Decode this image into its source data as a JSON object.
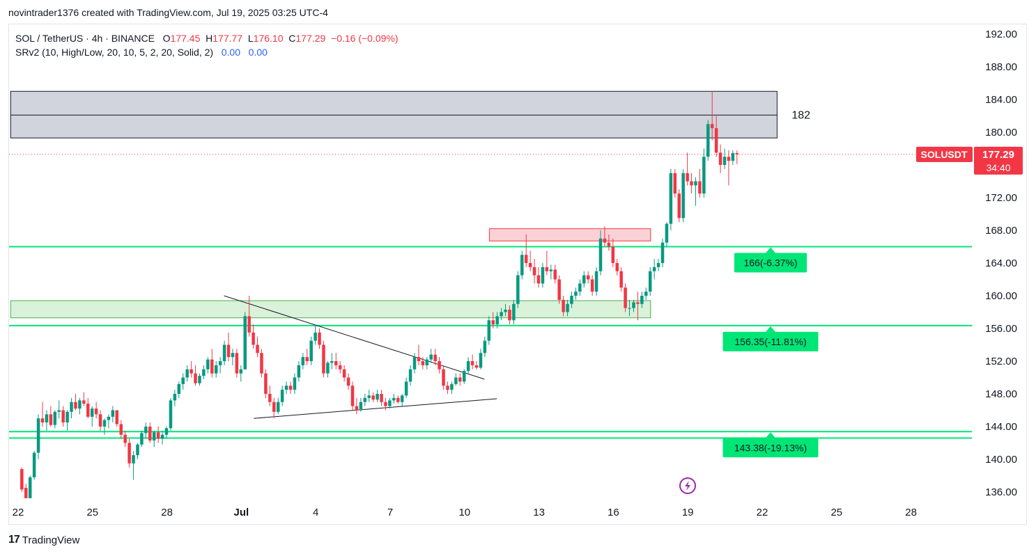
{
  "attribution": "novintrader1376 created with TradingView.com, Jul 19, 2025 03:25 UTC-4",
  "legend": {
    "symbol": "SOL / TetherUS · 4h · BINANCE",
    "o_label": "O",
    "o_val": "177.45",
    "h_label": "H",
    "h_val": "177.77",
    "l_label": "L",
    "l_val": "176.10",
    "c_label": "C",
    "c_val": "177.29",
    "change": "−0.16 (−0.09%)",
    "indicator": "SRv2 (10, High/Low, 20, 10, 5, 2, 20, Solid, 2)",
    "ind_val1": "0.00",
    "ind_val2": "0.00"
  },
  "footer": {
    "logo_mark": "17",
    "logo_text": "TradingView"
  },
  "colors": {
    "up": "#089981",
    "down": "#f23645",
    "level": "#00e676",
    "zone_gray": "#d1d4dc",
    "zone_red": "#f9cdd2",
    "zone_green": "#d6efd6"
  },
  "chart_data": {
    "type": "candlestick",
    "symbol": "SOLUSDT",
    "timeframe": "4h",
    "ylim": [
      135,
      193
    ],
    "y_ticks": [
      "136.00",
      "140.00",
      "144.00",
      "148.00",
      "152.00",
      "156.00",
      "160.00",
      "164.00",
      "168.00",
      "172.00",
      "176.00",
      "180.00",
      "184.00",
      "188.00",
      "192.00"
    ],
    "x_ticks": [
      {
        "label": "22",
        "day": 0
      },
      {
        "label": "25",
        "day": 3
      },
      {
        "label": "28",
        "day": 6
      },
      {
        "label": "Jul",
        "day": 9
      },
      {
        "label": "4",
        "day": 12
      },
      {
        "label": "7",
        "day": 15
      },
      {
        "label": "10",
        "day": 18
      },
      {
        "label": "13",
        "day": 21
      },
      {
        "label": "16",
        "day": 24
      },
      {
        "label": "19",
        "day": 27
      },
      {
        "label": "22",
        "day": 30
      },
      {
        "label": "25",
        "day": 33
      },
      {
        "label": "28",
        "day": 36
      }
    ],
    "last_price": {
      "symbol_label": "SOLUSDT",
      "price": "177.29",
      "countdown": "34:40",
      "value": 177.29
    },
    "zones": [
      {
        "kind": "gray",
        "day_from": -0.3,
        "day_to": 30.6,
        "top": 185.0,
        "bottom": 179.3,
        "mid": 182.1,
        "label": "182"
      },
      {
        "kind": "red",
        "day_from": 19.0,
        "day_to": 25.5,
        "top": 168.2,
        "bottom": 166.7
      },
      {
        "kind": "green",
        "day_from": -0.3,
        "day_to": 25.5,
        "top": 159.4,
        "bottom": 157.3
      }
    ],
    "levels": [
      {
        "value": 166.0,
        "label": "166(-6.37%)"
      },
      {
        "value": 156.35,
        "label": "156.35(-11.81%)"
      },
      {
        "value": 143.38,
        "label": "143.38(-19.13%)",
        "second_line": 142.6
      }
    ],
    "trendlines": [
      {
        "d1": 8.3,
        "p1": 160.0,
        "d2": 18.8,
        "p2": 149.8
      },
      {
        "d1": 9.5,
        "p1": 145.0,
        "d2": 19.3,
        "p2": 147.4
      }
    ],
    "candles": [
      [
        138.8,
        139.0,
        136.0,
        136.3
      ],
      [
        136.5,
        137.0,
        135.0,
        135.2
      ],
      [
        135.2,
        138.0,
        135.0,
        137.8
      ],
      [
        137.8,
        141.0,
        137.5,
        140.8
      ],
      [
        140.8,
        145.5,
        140.0,
        145.0
      ],
      [
        145.0,
        147.0,
        144.0,
        144.5
      ],
      [
        144.5,
        146.0,
        143.5,
        145.5
      ],
      [
        145.5,
        146.5,
        144.0,
        144.2
      ],
      [
        144.2,
        146.0,
        143.8,
        145.8
      ],
      [
        145.8,
        147.2,
        145.0,
        146.0
      ],
      [
        146.0,
        146.5,
        144.0,
        144.5
      ],
      [
        144.5,
        146.0,
        143.5,
        145.8
      ],
      [
        145.8,
        147.5,
        145.0,
        147.0
      ],
      [
        147.0,
        148.0,
        146.0,
        146.2
      ],
      [
        146.2,
        147.5,
        145.5,
        147.2
      ],
      [
        147.2,
        148.2,
        146.5,
        146.8
      ],
      [
        146.8,
        147.5,
        145.0,
        145.2
      ],
      [
        145.2,
        146.5,
        144.0,
        146.2
      ],
      [
        146.2,
        147.0,
        145.0,
        145.5
      ],
      [
        145.5,
        146.0,
        143.5,
        144.0
      ],
      [
        144.0,
        145.0,
        143.0,
        144.8
      ],
      [
        144.8,
        145.5,
        143.8,
        145.2
      ],
      [
        145.2,
        146.5,
        144.5,
        146.0
      ],
      [
        146.0,
        146.0,
        144.0,
        144.3
      ],
      [
        144.3,
        144.8,
        142.5,
        143.0
      ],
      [
        143.0,
        143.5,
        141.5,
        142.0
      ],
      [
        142.0,
        142.5,
        139.0,
        139.5
      ],
      [
        139.5,
        141.0,
        137.5,
        140.5
      ],
      [
        140.5,
        142.0,
        140.0,
        141.8
      ],
      [
        141.8,
        143.5,
        141.5,
        143.2
      ],
      [
        143.2,
        144.5,
        142.5,
        144.0
      ],
      [
        144.0,
        144.5,
        142.0,
        142.3
      ],
      [
        142.3,
        143.5,
        141.5,
        143.3
      ],
      [
        143.3,
        144.0,
        142.0,
        142.5
      ],
      [
        142.5,
        143.5,
        141.8,
        143.0
      ],
      [
        143.0,
        144.0,
        142.5,
        143.8
      ],
      [
        143.8,
        147.5,
        143.5,
        147.2
      ],
      [
        147.2,
        148.5,
        146.5,
        148.0
      ],
      [
        148.0,
        149.5,
        147.5,
        149.2
      ],
      [
        149.2,
        150.5,
        148.5,
        150.0
      ],
      [
        150.0,
        151.5,
        149.5,
        151.0
      ],
      [
        151.0,
        152.0,
        150.0,
        150.5
      ],
      [
        150.5,
        151.5,
        149.0,
        149.3
      ],
      [
        149.3,
        150.5,
        149.0,
        150.2
      ],
      [
        150.2,
        151.5,
        149.8,
        151.0
      ],
      [
        151.0,
        152.5,
        150.5,
        152.2
      ],
      [
        152.2,
        153.5,
        150.0,
        150.5
      ],
      [
        150.5,
        152.0,
        150.0,
        151.5
      ],
      [
        151.5,
        152.5,
        150.5,
        152.0
      ],
      [
        152.0,
        154.5,
        151.5,
        154.0
      ],
      [
        154.0,
        155.5,
        152.0,
        152.5
      ],
      [
        152.5,
        153.5,
        151.5,
        153.0
      ],
      [
        153.0,
        153.5,
        150.0,
        150.5
      ],
      [
        150.5,
        151.5,
        149.5,
        151.0
      ],
      [
        151.0,
        158.0,
        151.0,
        157.5
      ],
      [
        157.5,
        160.0,
        155.0,
        155.5
      ],
      [
        155.5,
        156.5,
        153.5,
        154.0
      ],
      [
        154.0,
        155.0,
        152.5,
        153.0
      ],
      [
        153.0,
        153.5,
        150.0,
        150.5
      ],
      [
        150.5,
        151.0,
        147.5,
        148.0
      ],
      [
        148.0,
        149.0,
        146.5,
        147.0
      ],
      [
        147.0,
        147.5,
        145.0,
        145.8
      ],
      [
        145.8,
        147.5,
        145.5,
        147.0
      ],
      [
        147.0,
        149.0,
        146.5,
        148.5
      ],
      [
        148.5,
        149.5,
        148.0,
        149.0
      ],
      [
        149.0,
        149.5,
        148.0,
        148.5
      ],
      [
        148.5,
        150.5,
        148.0,
        150.0
      ],
      [
        150.0,
        152.0,
        149.5,
        151.5
      ],
      [
        151.5,
        153.0,
        151.0,
        152.5
      ],
      [
        152.5,
        153.5,
        151.5,
        152.0
      ],
      [
        152.0,
        155.0,
        151.5,
        154.5
      ],
      [
        154.5,
        156.5,
        154.0,
        155.5
      ],
      [
        155.5,
        156.0,
        153.5,
        154.0
      ],
      [
        154.0,
        154.5,
        150.0,
        150.5
      ],
      [
        150.5,
        152.0,
        150.0,
        151.8
      ],
      [
        151.8,
        153.0,
        151.0,
        152.0
      ],
      [
        152.0,
        153.0,
        151.0,
        151.5
      ],
      [
        151.5,
        152.0,
        150.5,
        151.0
      ],
      [
        151.0,
        151.5,
        149.5,
        150.0
      ],
      [
        150.0,
        150.5,
        148.5,
        149.0
      ],
      [
        149.0,
        149.5,
        146.0,
        146.5
      ],
      [
        146.5,
        147.5,
        145.5,
        146.0
      ],
      [
        146.0,
        147.5,
        145.8,
        147.0
      ],
      [
        147.0,
        148.0,
        146.5,
        147.5
      ],
      [
        147.5,
        148.5,
        147.0,
        147.8
      ],
      [
        147.8,
        148.2,
        147.0,
        147.3
      ],
      [
        147.3,
        148.5,
        147.0,
        148.0
      ],
      [
        148.0,
        148.5,
        146.5,
        147.0
      ],
      [
        147.0,
        147.5,
        146.0,
        146.5
      ],
      [
        146.5,
        147.5,
        146.2,
        147.2
      ],
      [
        147.2,
        148.0,
        146.8,
        147.5
      ],
      [
        147.5,
        147.8,
        146.8,
        147.0
      ],
      [
        147.0,
        148.0,
        146.5,
        147.8
      ],
      [
        147.8,
        150.0,
        147.5,
        149.5
      ],
      [
        149.5,
        151.5,
        149.0,
        151.0
      ],
      [
        151.0,
        153.0,
        150.5,
        152.5
      ],
      [
        152.5,
        154.0,
        151.5,
        152.0
      ],
      [
        152.0,
        152.5,
        151.0,
        151.5
      ],
      [
        151.5,
        152.5,
        151.0,
        152.2
      ],
      [
        152.2,
        153.5,
        151.8,
        152.8
      ],
      [
        152.8,
        153.5,
        151.5,
        152.0
      ],
      [
        152.0,
        152.5,
        150.5,
        151.0
      ],
      [
        151.0,
        151.5,
        148.5,
        149.0
      ],
      [
        149.0,
        149.5,
        148.0,
        148.5
      ],
      [
        148.5,
        149.5,
        148.0,
        149.2
      ],
      [
        149.2,
        150.5,
        149.0,
        150.0
      ],
      [
        150.0,
        150.5,
        149.0,
        149.5
      ],
      [
        149.5,
        151.0,
        149.2,
        150.8
      ],
      [
        150.8,
        152.5,
        150.5,
        152.0
      ],
      [
        152.0,
        152.8,
        151.0,
        151.5
      ],
      [
        151.5,
        152.0,
        151.0,
        151.2
      ],
      [
        151.2,
        153.5,
        151.0,
        153.0
      ],
      [
        153.0,
        155.0,
        152.5,
        154.5
      ],
      [
        154.5,
        157.5,
        154.0,
        157.0
      ],
      [
        157.0,
        158.0,
        156.0,
        156.5
      ],
      [
        156.5,
        158.0,
        156.0,
        157.5
      ],
      [
        157.5,
        158.5,
        157.0,
        158.0
      ],
      [
        158.0,
        159.0,
        157.5,
        158.3
      ],
      [
        158.3,
        158.8,
        156.5,
        157.0
      ],
      [
        157.0,
        159.5,
        156.5,
        159.0
      ],
      [
        159.0,
        163.0,
        158.5,
        162.5
      ],
      [
        162.5,
        165.5,
        162.0,
        165.0
      ],
      [
        165.0,
        167.5,
        163.5,
        164.0
      ],
      [
        164.0,
        165.5,
        163.0,
        163.5
      ],
      [
        163.5,
        164.5,
        161.5,
        162.5
      ],
      [
        162.5,
        163.5,
        161.0,
        161.5
      ],
      [
        161.5,
        164.0,
        161.0,
        163.5
      ],
      [
        163.5,
        165.5,
        162.5,
        163.0
      ],
      [
        163.0,
        163.8,
        162.0,
        163.2
      ],
      [
        163.2,
        163.8,
        161.5,
        162.0
      ],
      [
        162.0,
        162.5,
        159.0,
        159.5
      ],
      [
        159.5,
        160.0,
        157.5,
        158.0
      ],
      [
        158.0,
        159.5,
        157.5,
        159.0
      ],
      [
        159.0,
        160.5,
        158.5,
        160.0
      ],
      [
        160.0,
        161.0,
        159.5,
        160.5
      ],
      [
        160.5,
        162.0,
        160.0,
        161.5
      ],
      [
        161.5,
        163.0,
        161.0,
        162.5
      ],
      [
        162.5,
        163.0,
        161.5,
        162.0
      ],
      [
        162.0,
        162.5,
        160.0,
        160.5
      ],
      [
        160.5,
        163.5,
        160.0,
        163.0
      ],
      [
        163.0,
        168.0,
        162.5,
        167.0
      ],
      [
        167.0,
        168.5,
        166.0,
        166.5
      ],
      [
        166.5,
        167.5,
        165.5,
        166.0
      ],
      [
        166.0,
        167.0,
        163.5,
        164.0
      ],
      [
        164.0,
        164.5,
        162.5,
        163.0
      ],
      [
        163.0,
        163.5,
        160.5,
        161.0
      ],
      [
        161.0,
        161.5,
        158.0,
        158.5
      ],
      [
        158.5,
        159.5,
        157.5,
        158.5
      ],
      [
        158.5,
        159.5,
        158.0,
        159.2
      ],
      [
        159.2,
        160.5,
        157.0,
        159.0
      ],
      [
        159.0,
        160.5,
        158.5,
        160.0
      ],
      [
        160.0,
        161.0,
        159.5,
        160.5
      ],
      [
        160.5,
        163.5,
        160.0,
        163.0
      ],
      [
        163.0,
        164.5,
        162.0,
        163.5
      ],
      [
        163.5,
        164.5,
        163.0,
        164.0
      ],
      [
        164.0,
        167.0,
        163.5,
        166.5
      ],
      [
        166.5,
        169.0,
        166.0,
        168.8
      ],
      [
        168.8,
        175.5,
        168.0,
        175.0
      ],
      [
        175.0,
        175.5,
        172.0,
        172.5
      ],
      [
        172.5,
        173.0,
        169.0,
        169.5
      ],
      [
        169.5,
        175.5,
        169.0,
        175.0
      ],
      [
        175.0,
        177.5,
        173.5,
        174.0
      ],
      [
        174.0,
        175.0,
        172.5,
        173.5
      ],
      [
        173.5,
        174.5,
        171.0,
        174.0
      ],
      [
        174.0,
        175.5,
        172.0,
        172.5
      ],
      [
        172.5,
        178.0,
        172.0,
        177.0
      ],
      [
        177.0,
        181.5,
        176.5,
        181.0
      ],
      [
        181.0,
        185.0,
        179.0,
        180.5
      ],
      [
        180.5,
        182.0,
        177.0,
        177.5
      ],
      [
        177.5,
        178.5,
        175.0,
        176.0
      ],
      [
        176.0,
        178.0,
        175.5,
        177.0
      ],
      [
        177.0,
        177.8,
        173.5,
        176.5
      ],
      [
        176.5,
        177.8,
        176.0,
        177.45
      ],
      [
        177.45,
        177.77,
        176.1,
        177.29
      ]
    ]
  }
}
